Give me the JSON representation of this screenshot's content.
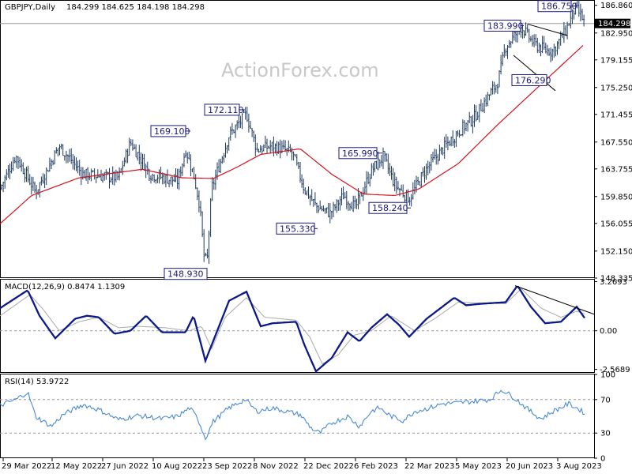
{
  "header": {
    "symbol": "GBPJPY,Daily",
    "ohlc": "184.299 184.625 184.198 184.298"
  },
  "watermark": "ActionForex.com",
  "last_price": "184.298",
  "chart_data": [
    {
      "type": "line",
      "panel": "price",
      "series": [
        {
          "name": "GBPJPY,Daily",
          "kind": "candlestick"
        }
      ],
      "ylim": [
        148.335,
        187.5
      ],
      "y_ticks": [
        "186.860",
        "182.950",
        "179.155",
        "175.250",
        "171.455",
        "167.550",
        "163.755",
        "159.850",
        "156.055",
        "152.150",
        "148.335"
      ],
      "x_ticks": [
        "29 Mar 2022",
        "12 May 2022",
        "27 Jun 2022",
        "10 Aug 2022",
        "23 Sep 2022",
        "8 Nov 2022",
        "22 Dec 2022",
        "6 Feb 2023",
        "22 Mar 2023",
        "5 May 2023",
        "20 Jun 2023",
        "3 Aug 2023"
      ],
      "last_value": 184.298,
      "price_anchors": [
        [
          0,
          161.0
        ],
        [
          20,
          165.6
        ],
        [
          45,
          160.5
        ],
        [
          75,
          167.0
        ],
        [
          105,
          163.0
        ],
        [
          150,
          162.5
        ],
        [
          165,
          167.5
        ],
        [
          190,
          163.0
        ],
        [
          225,
          162.0
        ],
        [
          235,
          166.5
        ],
        [
          245,
          163.0
        ],
        [
          253,
          158.5
        ],
        [
          258,
          151.5
        ],
        [
          262,
          150.5
        ],
        [
          268,
          161.0
        ],
        [
          290,
          168.5
        ],
        [
          312,
          171.5
        ],
        [
          325,
          166.5
        ],
        [
          345,
          167.0
        ],
        [
          370,
          166.0
        ],
        [
          385,
          161.0
        ],
        [
          400,
          158.5
        ],
        [
          418,
          157.5
        ],
        [
          435,
          160.0
        ],
        [
          450,
          158.3
        ],
        [
          470,
          163.5
        ],
        [
          485,
          165.5
        ],
        [
          500,
          161.5
        ],
        [
          518,
          159.5
        ],
        [
          538,
          163.5
        ],
        [
          560,
          166.5
        ],
        [
          580,
          169.0
        ],
        [
          600,
          171.0
        ],
        [
          630,
          176.0
        ],
        [
          640,
          181.0
        ],
        [
          660,
          183.8
        ],
        [
          675,
          181.5
        ],
        [
          690,
          180.5
        ],
        [
          700,
          180.5
        ],
        [
          715,
          183.0
        ],
        [
          728,
          186.5
        ],
        [
          735,
          185.5
        ],
        [
          740,
          184.3
        ]
      ],
      "ma_anchors": [
        [
          0,
          156.0
        ],
        [
          40,
          160.0
        ],
        [
          100,
          162.5
        ],
        [
          180,
          163.7
        ],
        [
          230,
          162.5
        ],
        [
          270,
          162.4
        ],
        [
          300,
          164.0
        ],
        [
          330,
          165.8
        ],
        [
          380,
          166.6
        ],
        [
          420,
          163.0
        ],
        [
          460,
          160.2
        ],
        [
          500,
          160.0
        ],
        [
          530,
          160.9
        ],
        [
          580,
          164.5
        ],
        [
          630,
          170.0
        ],
        [
          680,
          175.2
        ],
        [
          710,
          178.3
        ],
        [
          740,
          181.4
        ]
      ],
      "annotations": [
        {
          "label": "169.100",
          "value": 169.1
        },
        {
          "label": "172.110",
          "value": 172.11
        },
        {
          "label": "148.930",
          "value": 148.93
        },
        {
          "label": "155.330",
          "value": 155.33
        },
        {
          "label": "165.990",
          "value": 165.99
        },
        {
          "label": "158.240",
          "value": 158.24
        },
        {
          "label": "183.990",
          "value": 183.99
        },
        {
          "label": "176.290",
          "value": 176.29
        },
        {
          "label": "186.750",
          "value": 186.75
        }
      ]
    },
    {
      "type": "line",
      "panel": "macd",
      "title": "MACD(12,26,9) 0.8474 1.1309",
      "series": [
        {
          "name": "MACD",
          "value": 0.8474
        },
        {
          "name": "Signal",
          "value": 1.1309
        }
      ],
      "ylim": [
        -2.8,
        3.4
      ],
      "y_ticks": [
        "3.2693",
        "0.00",
        "-2.5689"
      ],
      "macd_anchors": [
        [
          0,
          1.5
        ],
        [
          35,
          2.7
        ],
        [
          50,
          1.0
        ],
        [
          70,
          -0.5
        ],
        [
          95,
          0.8
        ],
        [
          110,
          1.0
        ],
        [
          125,
          0.9
        ],
        [
          145,
          -0.2
        ],
        [
          165,
          0.0
        ],
        [
          185,
          1.0
        ],
        [
          205,
          -0.1
        ],
        [
          235,
          -0.1
        ],
        [
          245,
          1.0
        ],
        [
          260,
          -2.0
        ],
        [
          275,
          0.0
        ],
        [
          290,
          2.0
        ],
        [
          312,
          2.6
        ],
        [
          330,
          0.3
        ],
        [
          345,
          0.5
        ],
        [
          375,
          0.6
        ],
        [
          385,
          -0.9
        ],
        [
          400,
          -2.7
        ],
        [
          420,
          -1.8
        ],
        [
          440,
          -0.1
        ],
        [
          455,
          -0.7
        ],
        [
          470,
          0.2
        ],
        [
          490,
          1.1
        ],
        [
          505,
          0.4
        ],
        [
          518,
          -0.4
        ],
        [
          540,
          0.8
        ],
        [
          575,
          2.2
        ],
        [
          590,
          1.7
        ],
        [
          610,
          1.8
        ],
        [
          640,
          1.9
        ],
        [
          655,
          3.0
        ],
        [
          672,
          1.6
        ],
        [
          690,
          0.5
        ],
        [
          710,
          0.6
        ],
        [
          730,
          1.6
        ],
        [
          740,
          0.85
        ]
      ],
      "signal_anchors": [
        [
          0,
          1.0
        ],
        [
          38,
          2.4
        ],
        [
          55,
          1.4
        ],
        [
          75,
          0.0
        ],
        [
          100,
          0.6
        ],
        [
          125,
          0.9
        ],
        [
          150,
          0.2
        ],
        [
          175,
          0.3
        ],
        [
          210,
          0.2
        ],
        [
          240,
          0.0
        ],
        [
          255,
          0.3
        ],
        [
          268,
          -1.2
        ],
        [
          285,
          0.9
        ],
        [
          312,
          2.2
        ],
        [
          335,
          0.9
        ],
        [
          375,
          0.7
        ],
        [
          392,
          -0.4
        ],
        [
          408,
          -2.2
        ],
        [
          428,
          -1.6
        ],
        [
          448,
          -0.3
        ],
        [
          470,
          0.0
        ],
        [
          495,
          1.0
        ],
        [
          525,
          0.0
        ],
        [
          550,
          0.8
        ],
        [
          580,
          1.9
        ],
        [
          640,
          1.8
        ],
        [
          660,
          2.8
        ],
        [
          685,
          1.5
        ],
        [
          710,
          0.9
        ],
        [
          730,
          1.3
        ],
        [
          740,
          1.13
        ]
      ],
      "trend_line": [
        [
          652,
          3.0
        ],
        [
          752,
          1.1
        ]
      ]
    },
    {
      "type": "line",
      "panel": "rsi",
      "title": "RSI(14) 53.9722",
      "series": [
        {
          "name": "RSI(14)",
          "value": 53.9722
        }
      ],
      "ylim": [
        0,
        100
      ],
      "y_ticks": [
        "100",
        "70",
        "30",
        "0"
      ],
      "levels": [
        70,
        30
      ],
      "rsi_anchors": [
        [
          0,
          63
        ],
        [
          20,
          70
        ],
        [
          35,
          79
        ],
        [
          45,
          50
        ],
        [
          65,
          38
        ],
        [
          80,
          52
        ],
        [
          105,
          64
        ],
        [
          125,
          58
        ],
        [
          150,
          46
        ],
        [
          175,
          51
        ],
        [
          205,
          47
        ],
        [
          225,
          50
        ],
        [
          240,
          60
        ],
        [
          250,
          48
        ],
        [
          260,
          24
        ],
        [
          270,
          44
        ],
        [
          290,
          60
        ],
        [
          310,
          70
        ],
        [
          325,
          56
        ],
        [
          345,
          60
        ],
        [
          380,
          52
        ],
        [
          395,
          35
        ],
        [
          405,
          30
        ],
        [
          420,
          42
        ],
        [
          440,
          50
        ],
        [
          455,
          38
        ],
        [
          470,
          56
        ],
        [
          480,
          60
        ],
        [
          495,
          50
        ],
        [
          510,
          45
        ],
        [
          525,
          56
        ],
        [
          540,
          59
        ],
        [
          560,
          65
        ],
        [
          580,
          66
        ],
        [
          600,
          68
        ],
        [
          620,
          70
        ],
        [
          635,
          82
        ],
        [
          650,
          73
        ],
        [
          670,
          57
        ],
        [
          685,
          47
        ],
        [
          700,
          56
        ],
        [
          720,
          65
        ],
        [
          730,
          60
        ],
        [
          740,
          54
        ]
      ]
    }
  ]
}
